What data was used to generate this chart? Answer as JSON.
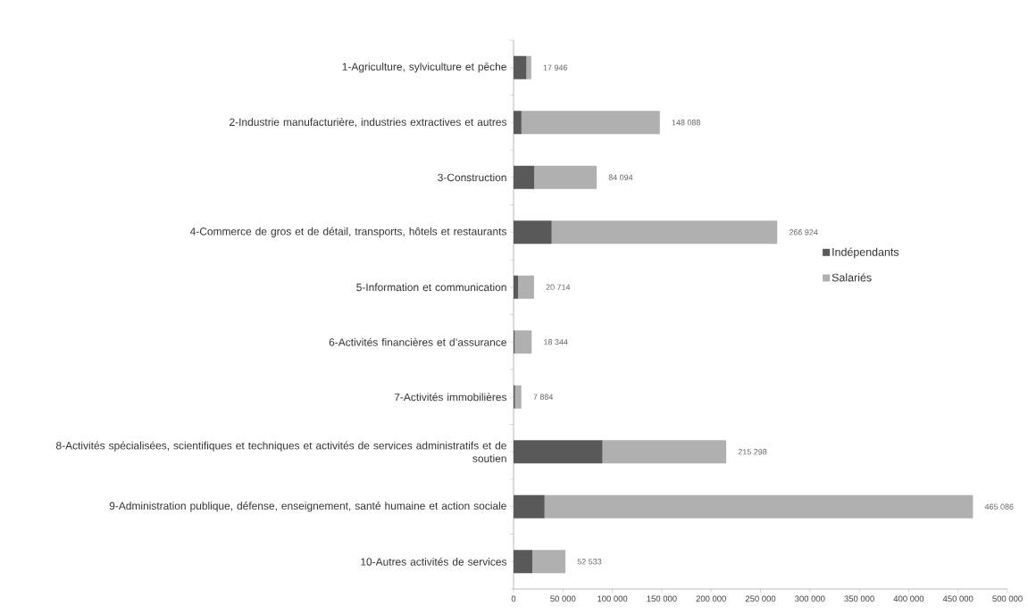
{
  "chart_data": {
    "type": "bar",
    "orientation": "horizontal",
    "stacked": true,
    "categories": [
      "1-Agriculture, sylviculture et pêche",
      "2-Industrie manufacturière, industries extractives et autres",
      "3-Construction",
      "4-Commerce de gros et de détail, transports, hôtels et restaurants",
      "5-Information et communication",
      "6-Activités financières et d’assurance",
      "7-Activités immobilières",
      "8-Activités spécialisées, scientifiques et techniques et activités de services administratifs et de soutien",
      "9-Administration publique, défense, enseignement, santé humaine et action sociale",
      "10-Autres activités de services"
    ],
    "series": [
      {
        "name": "Indépendants",
        "color": "#595959",
        "values": [
          13000,
          8000,
          21000,
          38600,
          4500,
          1200,
          1500,
          90000,
          31400,
          19000
        ]
      },
      {
        "name": "Salariés",
        "color": "#b0b0b0",
        "values": [
          4946,
          140088,
          63094,
          228324,
          16214,
          17144,
          6384,
          125298,
          433686,
          33533
        ]
      }
    ],
    "totals": [
      "17 946",
      "148 088",
      "84 094",
      "266 924",
      "20 714",
      "18 344",
      "7 884",
      "215 298",
      "465 086",
      "52 533"
    ],
    "xlim": [
      0,
      500000
    ],
    "xticks": [
      0,
      {
        "value": 50000,
        "label": "50 000"
      },
      {
        "value": 100000,
        "label": "100 000"
      },
      {
        "value": 150000,
        "label": "150 000"
      },
      {
        "value": 200000,
        "label": "200 000"
      },
      {
        "value": 250000,
        "label": "250 000"
      },
      {
        "value": 300000,
        "label": "300 000"
      },
      {
        "value": 350000,
        "label": "350 000"
      },
      {
        "value": 400000,
        "label": "400 000"
      },
      {
        "value": 450000,
        "label": "450 000"
      },
      {
        "value": 500000,
        "label": "500 000"
      }
    ],
    "grid": false,
    "legend": "right"
  }
}
